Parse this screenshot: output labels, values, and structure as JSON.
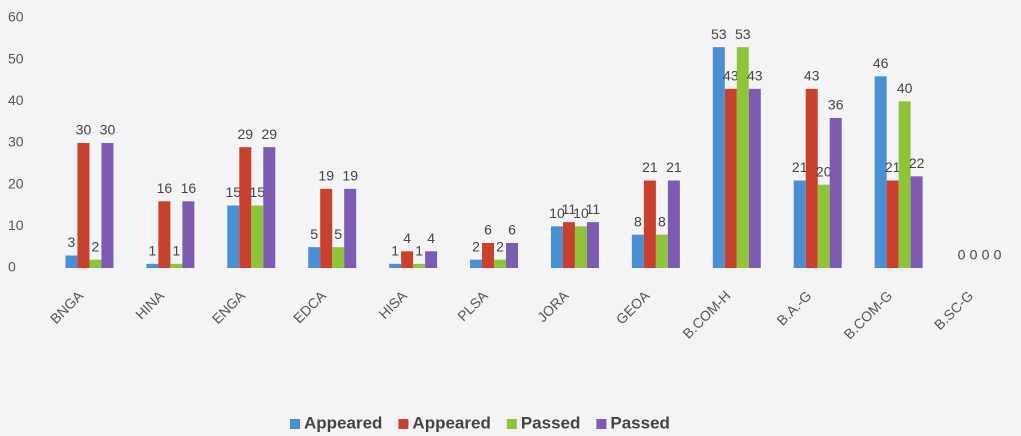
{
  "chart_data": {
    "type": "bar",
    "categories": [
      "BNGA",
      "HINA",
      "ENGA",
      "EDCA",
      "HISA",
      "PLSA",
      "JORA",
      "GEOA",
      "B.COM-H",
      "B.A.-G",
      "B.COM-G",
      "B.SC-G"
    ],
    "series": [
      {
        "name": "Appeared",
        "color": "#4a8fd4",
        "values": [
          3,
          1,
          15,
          5,
          1,
          2,
          10,
          8,
          53,
          21,
          46,
          0
        ]
      },
      {
        "name": "Appeared",
        "color": "#c8402e",
        "values": [
          30,
          16,
          29,
          19,
          4,
          6,
          11,
          21,
          43,
          43,
          21,
          0
        ]
      },
      {
        "name": "Passed",
        "color": "#8fc43a",
        "values": [
          2,
          1,
          15,
          5,
          1,
          2,
          10,
          8,
          53,
          20,
          40,
          0
        ]
      },
      {
        "name": "Passed",
        "color": "#7d5bb0",
        "values": [
          30,
          16,
          29,
          19,
          4,
          6,
          11,
          21,
          43,
          36,
          22,
          0
        ]
      }
    ],
    "ylim": [
      0,
      60
    ],
    "yticks": [
      0,
      10,
      20,
      30,
      40,
      50,
      60
    ],
    "grid": false,
    "legend": "bottom"
  }
}
